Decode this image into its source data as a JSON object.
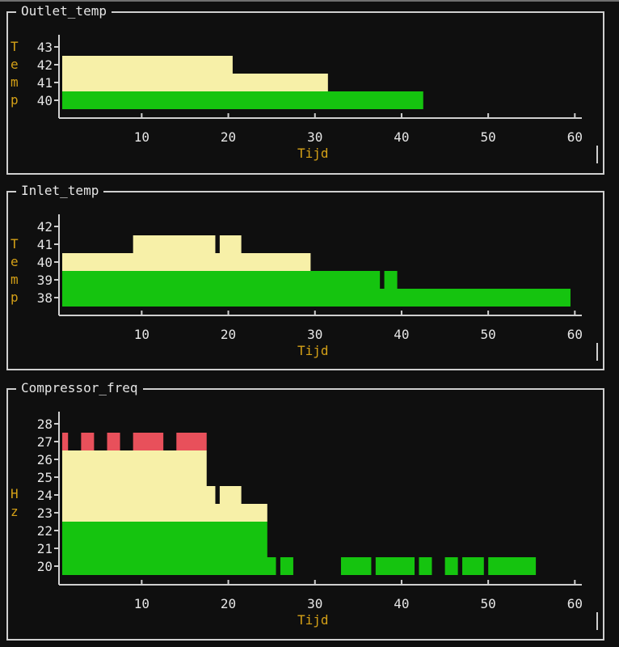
{
  "colors": {
    "background": "#0f0f0f",
    "axis": "#cfcfcf",
    "label": "#d4a017",
    "green": "#15c40f",
    "yellow": "#f7f0a8",
    "red": "#e8505b",
    "text": "#e6e6e6"
  },
  "panels": [
    {
      "title": "Outlet_temp",
      "ylabel_chars": [
        "T",
        "e",
        "m",
        "p"
      ],
      "xlabel": "Tijd"
    },
    {
      "title": "Inlet_temp",
      "ylabel_chars": [
        "T",
        "e",
        "m",
        "p"
      ],
      "xlabel": "Tijd"
    },
    {
      "title": "Compressor_freq",
      "ylabel_chars": [
        "H",
        "z"
      ],
      "xlabel": "Tijd"
    }
  ],
  "chart_data": [
    {
      "type": "bar",
      "title": "Outlet_temp",
      "xlabel": "Tijd",
      "ylabel": "Temp",
      "xlim": [
        1,
        60
      ],
      "x_ticks": [
        10,
        20,
        30,
        40,
        50,
        60
      ],
      "y_ticks": [
        43,
        42,
        41,
        40
      ],
      "bands": [
        {
          "y": 42,
          "color": "yellow",
          "runs": [
            [
              1,
              20.5
            ]
          ]
        },
        {
          "y": 41,
          "color": "yellow",
          "runs": [
            [
              1,
              31.5
            ]
          ]
        },
        {
          "y": 40,
          "color": "green",
          "runs": [
            [
              1,
              42.5
            ]
          ]
        }
      ]
    },
    {
      "type": "bar",
      "title": "Inlet_temp",
      "xlabel": "Tijd",
      "ylabel": "Temp",
      "xlim": [
        1,
        60
      ],
      "x_ticks": [
        10,
        20,
        30,
        40,
        50,
        60
      ],
      "y_ticks": [
        42,
        41,
        40,
        39,
        38
      ],
      "bands": [
        {
          "y": 41,
          "color": "yellow",
          "runs": [
            [
              9.5,
              18.5
            ],
            [
              19.5,
              21.5
            ]
          ]
        },
        {
          "y": 40,
          "color": "yellow",
          "runs": [
            [
              1,
              29.5
            ]
          ]
        },
        {
          "y": 39,
          "color": "green",
          "runs": [
            [
              1,
              37.5
            ],
            [
              38.5,
              39.5
            ]
          ]
        },
        {
          "y": 38,
          "color": "green",
          "runs": [
            [
              1,
              59.5
            ]
          ]
        }
      ]
    },
    {
      "type": "bar",
      "title": "Compressor_freq",
      "xlabel": "Tijd",
      "ylabel": "Hz",
      "xlim": [
        1,
        60
      ],
      "x_ticks": [
        10,
        20,
        30,
        40,
        50,
        60
      ],
      "y_ticks": [
        28,
        27,
        26,
        25,
        24,
        23,
        22,
        21,
        20
      ],
      "bands": [
        {
          "y": 27,
          "color": "red",
          "runs": [
            [
              1,
              1.5
            ],
            [
              3.5,
              4.5
            ],
            [
              6.5,
              7.5
            ],
            [
              9.5,
              12.5
            ],
            [
              14.5,
              17.5
            ]
          ]
        },
        {
          "y": 26,
          "color": "yellow",
          "runs": [
            [
              1,
              17.5
            ]
          ]
        },
        {
          "y": 25,
          "color": "yellow",
          "runs": [
            [
              1,
              17.5
            ]
          ]
        },
        {
          "y": 24,
          "color": "yellow",
          "runs": [
            [
              1,
              18.5
            ],
            [
              19.5,
              21.5
            ]
          ]
        },
        {
          "y": 23,
          "color": "yellow",
          "runs": [
            [
              1,
              24.5
            ]
          ]
        },
        {
          "y": 22,
          "color": "green",
          "runs": [
            [
              1,
              24.5
            ]
          ]
        },
        {
          "y": 21,
          "color": "green",
          "runs": [
            [
              1,
              24.5
            ]
          ]
        },
        {
          "y": 20,
          "color": "green",
          "runs": [
            [
              1,
              25.5
            ],
            [
              26.5,
              27.5
            ],
            [
              33.5,
              36.5
            ],
            [
              37.5,
              41.5
            ],
            [
              42.5,
              43.5
            ],
            [
              45.5,
              46.5
            ],
            [
              47.5,
              49.5
            ],
            [
              50.5,
              55.5
            ]
          ]
        }
      ]
    }
  ]
}
